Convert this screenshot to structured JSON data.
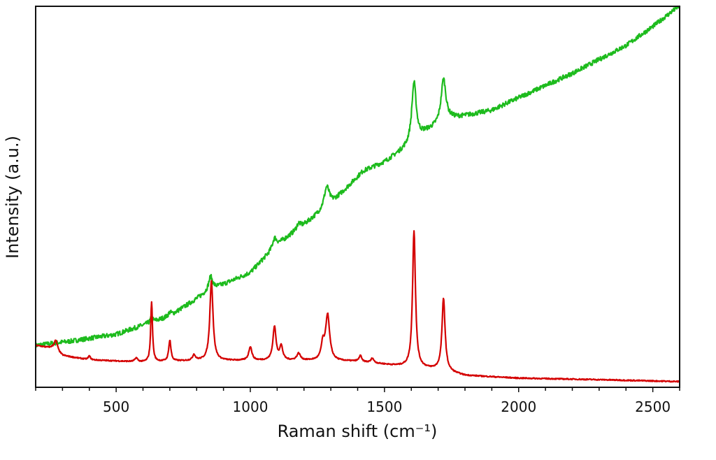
{
  "chart_data": {
    "type": "line",
    "title": "",
    "xlabel": "Raman shift (cm⁻¹)",
    "ylabel": "Intensity (a.u.)",
    "xlim": [
      200,
      2600
    ],
    "ylim": [
      0,
      100
    ],
    "x_major_ticks": [
      500,
      1000,
      1500,
      2000,
      2500
    ],
    "x_tick_labels": [
      "500",
      "1000",
      "1500",
      "2000",
      "2500"
    ],
    "x_minor_step": 100,
    "y_ticks_shown": false,
    "grid": false,
    "legend": "none",
    "series": [
      {
        "color": "#1dbb1d",
        "noise": 0.6,
        "baseline": [
          [
            200,
            11.0
          ],
          [
            330,
            12.1
          ],
          [
            500,
            13.9
          ],
          [
            700,
            18.7
          ],
          [
            850,
            25.5
          ],
          [
            1000,
            30.1
          ],
          [
            1100,
            37.4
          ],
          [
            1200,
            42.6
          ],
          [
            1300,
            48.0
          ],
          [
            1420,
            56.7
          ],
          [
            1500,
            59.1
          ],
          [
            1580,
            62.8
          ],
          [
            1650,
            66.8
          ],
          [
            1750,
            70.5
          ],
          [
            1900,
            72.7
          ],
          [
            2000,
            76.0
          ],
          [
            2200,
            82.4
          ],
          [
            2400,
            89.7
          ],
          [
            2500,
            94.7
          ],
          [
            2600,
            100.2
          ]
        ],
        "peaks": [
          [
            632,
            1.2,
            12
          ],
          [
            700,
            1.0,
            14
          ],
          [
            852,
            3.5,
            18
          ],
          [
            1090,
            2.5,
            18
          ],
          [
            1180,
            1.5,
            18
          ],
          [
            1285,
            5.5,
            24
          ],
          [
            1610,
            15.5,
            20
          ],
          [
            1720,
            11.5,
            22
          ]
        ]
      },
      {
        "color": "#d40000",
        "noise": 0.15,
        "baseline": [
          [
            200,
            11.0
          ],
          [
            260,
            10.2
          ],
          [
            300,
            8.3
          ],
          [
            400,
            7.2
          ],
          [
            600,
            6.6
          ],
          [
            800,
            7.0
          ],
          [
            1000,
            7.0
          ],
          [
            1200,
            7.0
          ],
          [
            1400,
            6.8
          ],
          [
            1550,
            5.6
          ],
          [
            1700,
            4.6
          ],
          [
            1800,
            3.1
          ],
          [
            2000,
            2.4
          ],
          [
            2300,
            2.0
          ],
          [
            2600,
            1.5
          ]
        ],
        "peaks": [
          [
            275,
            2.8,
            16
          ],
          [
            400,
            1.0,
            10
          ],
          [
            575,
            1.0,
            12
          ],
          [
            632,
            15.8,
            8
          ],
          [
            700,
            5.5,
            10
          ],
          [
            790,
            1.5,
            12
          ],
          [
            855,
            21.0,
            14
          ],
          [
            1000,
            3.6,
            14
          ],
          [
            1090,
            8.8,
            14
          ],
          [
            1115,
            3.6,
            14
          ],
          [
            1180,
            1.8,
            16
          ],
          [
            1270,
            4.0,
            14
          ],
          [
            1288,
            12.0,
            18
          ],
          [
            1410,
            1.6,
            10
          ],
          [
            1455,
            1.2,
            12
          ],
          [
            1610,
            35.8,
            13
          ],
          [
            1720,
            18.9,
            14
          ]
        ]
      }
    ]
  }
}
